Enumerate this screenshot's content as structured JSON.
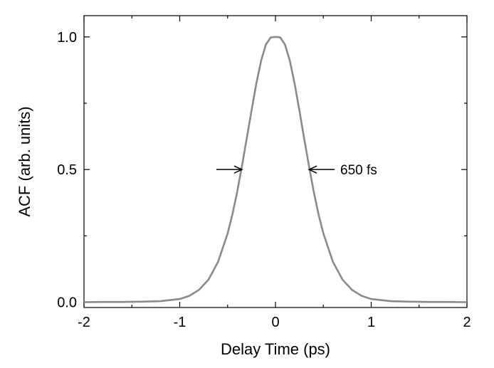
{
  "chart_data": {
    "type": "line",
    "title": "",
    "xlabel": "Delay Time (ps)",
    "ylabel": "ACF (arb. units)",
    "xlim": [
      -2,
      2
    ],
    "ylim": [
      -0.02,
      1.08
    ],
    "xticks": [
      -2,
      -1,
      0,
      1,
      2
    ],
    "xtick_labels": [
      "-2",
      "-1",
      "0",
      "1",
      "2"
    ],
    "yticks": [
      0.0,
      0.5,
      1.0
    ],
    "ytick_labels": [
      "0.0",
      "0.5",
      "1.0"
    ],
    "grid": false,
    "legend": "none",
    "series": [
      {
        "color": "#8a8a8a",
        "x": [
          -2.0,
          -1.8,
          -1.6,
          -1.4,
          -1.2,
          -1.0,
          -0.9,
          -0.8,
          -0.7,
          -0.6,
          -0.5,
          -0.45,
          -0.4,
          -0.35,
          -0.3,
          -0.25,
          -0.2,
          -0.15,
          -0.1,
          -0.05,
          0.0,
          0.05,
          0.1,
          0.15,
          0.2,
          0.25,
          0.3,
          0.35,
          0.4,
          0.45,
          0.5,
          0.6,
          0.7,
          0.8,
          0.9,
          1.0,
          1.2,
          1.4,
          1.6,
          1.8,
          2.0
        ],
        "y": [
          0.0,
          0.001,
          0.001,
          0.002,
          0.004,
          0.012,
          0.024,
          0.046,
          0.085,
          0.152,
          0.259,
          0.331,
          0.416,
          0.513,
          0.617,
          0.723,
          0.824,
          0.91,
          0.971,
          0.998,
          1.0,
          0.998,
          0.971,
          0.91,
          0.824,
          0.723,
          0.617,
          0.513,
          0.416,
          0.331,
          0.259,
          0.152,
          0.085,
          0.046,
          0.024,
          0.012,
          0.004,
          0.002,
          0.001,
          0.001,
          0.0
        ]
      }
    ],
    "annotations": [
      {
        "text": "650 fs",
        "x": 0.9,
        "y": 0.5
      },
      {
        "arrow": "right-pointing",
        "tip_x": -0.35,
        "y": 0.5
      },
      {
        "arrow": "left-pointing",
        "tip_x": 0.35,
        "y": 0.5
      }
    ]
  }
}
